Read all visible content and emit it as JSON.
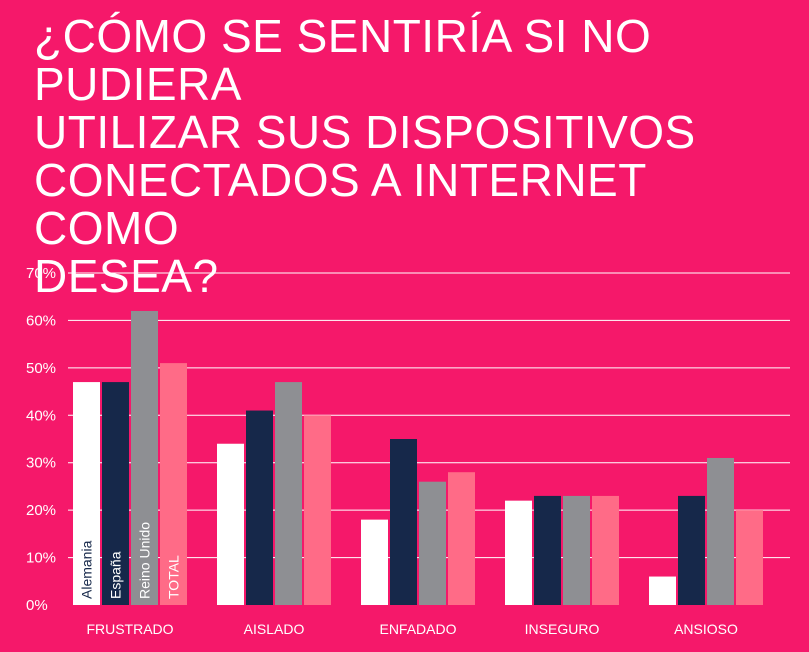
{
  "title": "¿CÓMO SE SENTIRÍA SI NO PUDIERA\nUTILIZAR SUS DISPOSITIVOS\nCONECTADOS A INTERNET COMO\nDESEA?",
  "colors": {
    "background": "#f5186a",
    "Alemania": "#ffffff",
    "España": "#16284a",
    "Reino Unido": "#8e8f93",
    "TOTAL": "#ff6b87",
    "gridline": "#ffffff",
    "text": "#ffffff"
  },
  "chart_data": {
    "type": "bar",
    "categories": [
      "FRUSTRADO",
      "AISLADO",
      "ENFADADO",
      "INSEGURO",
      "ANSIOSO"
    ],
    "series": [
      {
        "name": "Alemania",
        "values": [
          47,
          34,
          18,
          22,
          6
        ]
      },
      {
        "name": "España",
        "values": [
          47,
          41,
          35,
          23,
          23
        ]
      },
      {
        "name": "Reino Unido",
        "values": [
          62,
          47,
          26,
          23,
          31
        ]
      },
      {
        "name": "TOTAL",
        "values": [
          51,
          40,
          28,
          23,
          20
        ]
      }
    ],
    "yticks": [
      "0%",
      "10%",
      "20%",
      "30%",
      "40%",
      "50%",
      "60%",
      "70%"
    ],
    "ylim": [
      0,
      70
    ],
    "grid": true,
    "legend": "series names written vertically inside the first group of bars"
  }
}
